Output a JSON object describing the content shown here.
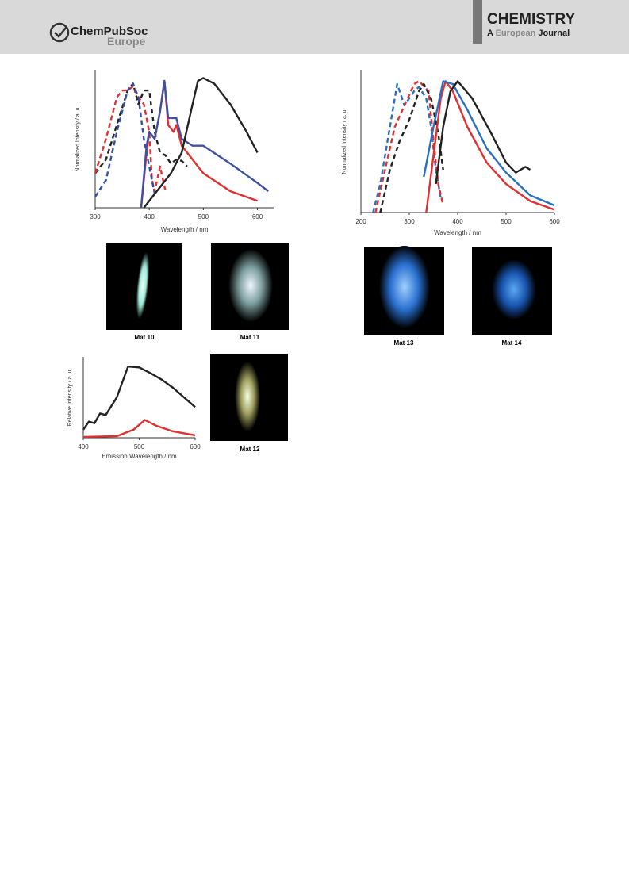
{
  "header": {
    "publisher": "ChemPubSoc",
    "publisher_region": "Europe",
    "journal": "CHEMISTRY",
    "journal_subtitle": [
      "A",
      "European",
      "Journal"
    ]
  },
  "chart_data": [
    {
      "type": "line",
      "x_label": "Wavelength / nm",
      "y_label": "Normalized Intensity / a. u.",
      "xlim": [
        300,
        630
      ],
      "ylim": [
        0,
        1
      ],
      "xticks": [
        300,
        400,
        500,
        600
      ],
      "series": [
        {
          "color": "#222222",
          "dashed": true,
          "x": [
            300,
            320,
            340,
            360,
            370,
            380,
            390,
            400,
            410,
            420,
            430,
            440,
            450,
            460,
            470
          ],
          "values": [
            0.25,
            0.35,
            0.6,
            0.85,
            0.9,
            0.75,
            0.85,
            0.85,
            0.55,
            0.4,
            0.38,
            0.32,
            0.35,
            0.34,
            0.3
          ]
        },
        {
          "color": "#e03030",
          "dashed": true,
          "x": [
            300,
            320,
            340,
            350,
            360,
            370,
            380,
            390,
            400,
            405,
            410,
            420,
            430
          ],
          "values": [
            0.25,
            0.5,
            0.8,
            0.85,
            0.85,
            0.88,
            0.8,
            0.75,
            0.55,
            0.2,
            0.12,
            0.3,
            0.12
          ]
        },
        {
          "color": "#3050a8",
          "dashed": true,
          "x": [
            300,
            320,
            340,
            360,
            370,
            380,
            390,
            400,
            410
          ],
          "values": [
            0.08,
            0.2,
            0.55,
            0.85,
            0.9,
            0.8,
            0.5,
            0.3,
            0.1
          ]
        },
        {
          "color": "#e03030",
          "dashed": false,
          "x": [
            385,
            395,
            400,
            410,
            420,
            428,
            435,
            445,
            450,
            460,
            480,
            500,
            550,
            600
          ],
          "values": [
            0,
            0.4,
            0.55,
            0.5,
            0.7,
            0.92,
            0.6,
            0.55,
            0.6,
            0.45,
            0.35,
            0.25,
            0.12,
            0.05
          ]
        },
        {
          "color": "#4050a0",
          "dashed": false,
          "x": [
            385,
            395,
            400,
            410,
            420,
            428,
            435,
            450,
            460,
            480,
            500,
            550,
            600,
            620
          ],
          "values": [
            0,
            0.45,
            0.55,
            0.5,
            0.7,
            0.92,
            0.65,
            0.65,
            0.5,
            0.45,
            0.45,
            0.32,
            0.18,
            0.12
          ]
        },
        {
          "color": "#222222",
          "dashed": false,
          "x": [
            390,
            400,
            420,
            440,
            460,
            480,
            490,
            500,
            520,
            550,
            580,
            600
          ],
          "values": [
            0,
            0.05,
            0.15,
            0.25,
            0.4,
            0.75,
            0.92,
            0.94,
            0.9,
            0.75,
            0.55,
            0.4
          ]
        }
      ]
    },
    {
      "type": "line",
      "x_label": "Wavelength / nm",
      "y_label": "Normalized Intensity / a. u.",
      "xlim": [
        200,
        600
      ],
      "ylim": [
        0,
        1
      ],
      "xticks": [
        200,
        300,
        400,
        500,
        600
      ],
      "series": [
        {
          "color": "#2a70c0",
          "dashed": true,
          "x": [
            225,
            240,
            260,
            275,
            290,
            310,
            320,
            335,
            345,
            355,
            365
          ],
          "values": [
            0,
            0.2,
            0.6,
            0.9,
            0.75,
            0.85,
            0.88,
            0.8,
            0.6,
            0.3,
            0.1
          ]
        },
        {
          "color": "#e03030",
          "dashed": true,
          "x": [
            230,
            250,
            270,
            290,
            310,
            320,
            340,
            350,
            360,
            370
          ],
          "values": [
            0,
            0.3,
            0.6,
            0.75,
            0.9,
            0.92,
            0.85,
            0.5,
            0.2,
            0.05
          ]
        },
        {
          "color": "#222222",
          "dashed": true,
          "x": [
            240,
            260,
            280,
            300,
            320,
            330,
            345,
            360,
            370
          ],
          "values": [
            0,
            0.3,
            0.5,
            0.65,
            0.85,
            0.9,
            0.8,
            0.55,
            0.3
          ]
        },
        {
          "color": "#e03030",
          "dashed": false,
          "x": [
            335,
            350,
            365,
            375,
            390,
            420,
            460,
            500,
            550,
            600
          ],
          "values": [
            0,
            0.4,
            0.8,
            0.92,
            0.85,
            0.6,
            0.35,
            0.2,
            0.08,
            0.02
          ]
        },
        {
          "color": "#2a70c0",
          "dashed": false,
          "x": [
            330,
            350,
            370,
            390,
            420,
            460,
            500,
            550,
            600
          ],
          "values": [
            0.25,
            0.6,
            0.92,
            0.9,
            0.72,
            0.45,
            0.28,
            0.12,
            0.05
          ]
        },
        {
          "color": "#222222",
          "dashed": false,
          "x": [
            355,
            370,
            385,
            400,
            430,
            470,
            500,
            520,
            540,
            550
          ],
          "values": [
            0.2,
            0.6,
            0.85,
            0.92,
            0.8,
            0.55,
            0.35,
            0.28,
            0.32,
            0.3
          ]
        }
      ]
    },
    {
      "type": "line",
      "x_label": "Emission Wavelength / nm",
      "y_label": "Relative Intensity / a. u.",
      "xlim": [
        400,
        600
      ],
      "ylim": [
        0,
        1
      ],
      "xticks": [
        400,
        500,
        600
      ],
      "series": [
        {
          "color": "#222222",
          "dashed": false,
          "x": [
            400,
            410,
            420,
            430,
            440,
            460,
            480,
            500,
            520,
            540,
            560,
            580,
            600
          ],
          "values": [
            0.1,
            0.2,
            0.18,
            0.3,
            0.28,
            0.5,
            0.88,
            0.87,
            0.8,
            0.72,
            0.62,
            0.5,
            0.38
          ]
        },
        {
          "color": "#e03030",
          "dashed": false,
          "x": [
            400,
            460,
            490,
            510,
            530,
            560,
            600
          ],
          "values": [
            0.01,
            0.02,
            0.1,
            0.22,
            0.15,
            0.08,
            0.03
          ]
        }
      ]
    }
  ],
  "photos": [
    {
      "label": "Mat 10"
    },
    {
      "label": "Mat 11"
    },
    {
      "label": "Mat 12"
    },
    {
      "label": "Mat 13"
    },
    {
      "label": "Mat 14"
    }
  ]
}
